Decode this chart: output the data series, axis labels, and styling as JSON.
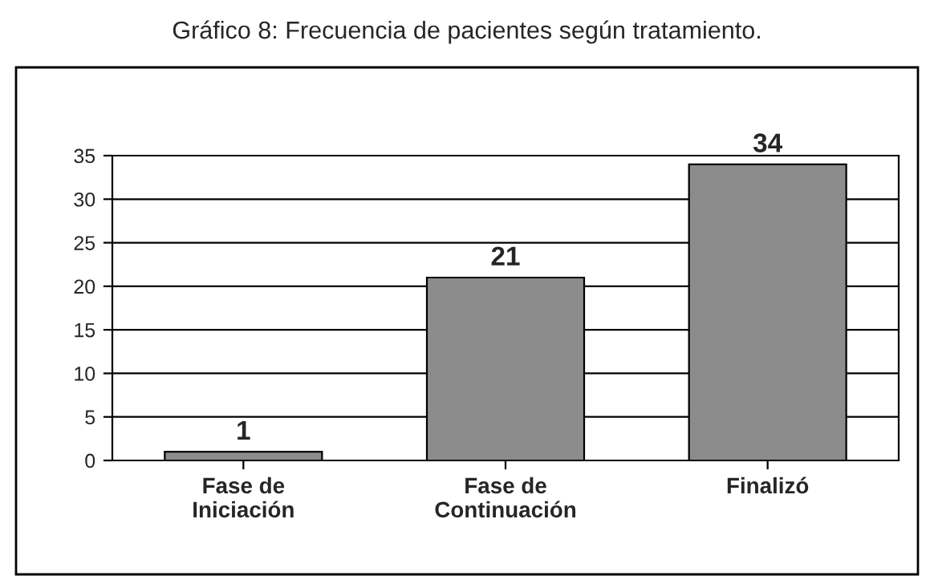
{
  "chart_data": {
    "type": "bar",
    "title": "Gráfico 8: Frecuencia de pacientes según tratamiento.",
    "categories": [
      "Fase de\nIniciación",
      "Fase de\nContinuación",
      "Finalizó"
    ],
    "values": [
      1,
      21,
      34
    ],
    "color": "#8c8c8c",
    "ylim": [
      0,
      35
    ],
    "yticks": [
      0,
      5,
      10,
      15,
      20,
      25,
      30,
      35
    ],
    "grid": "y",
    "data_labels": true,
    "legend": false
  }
}
